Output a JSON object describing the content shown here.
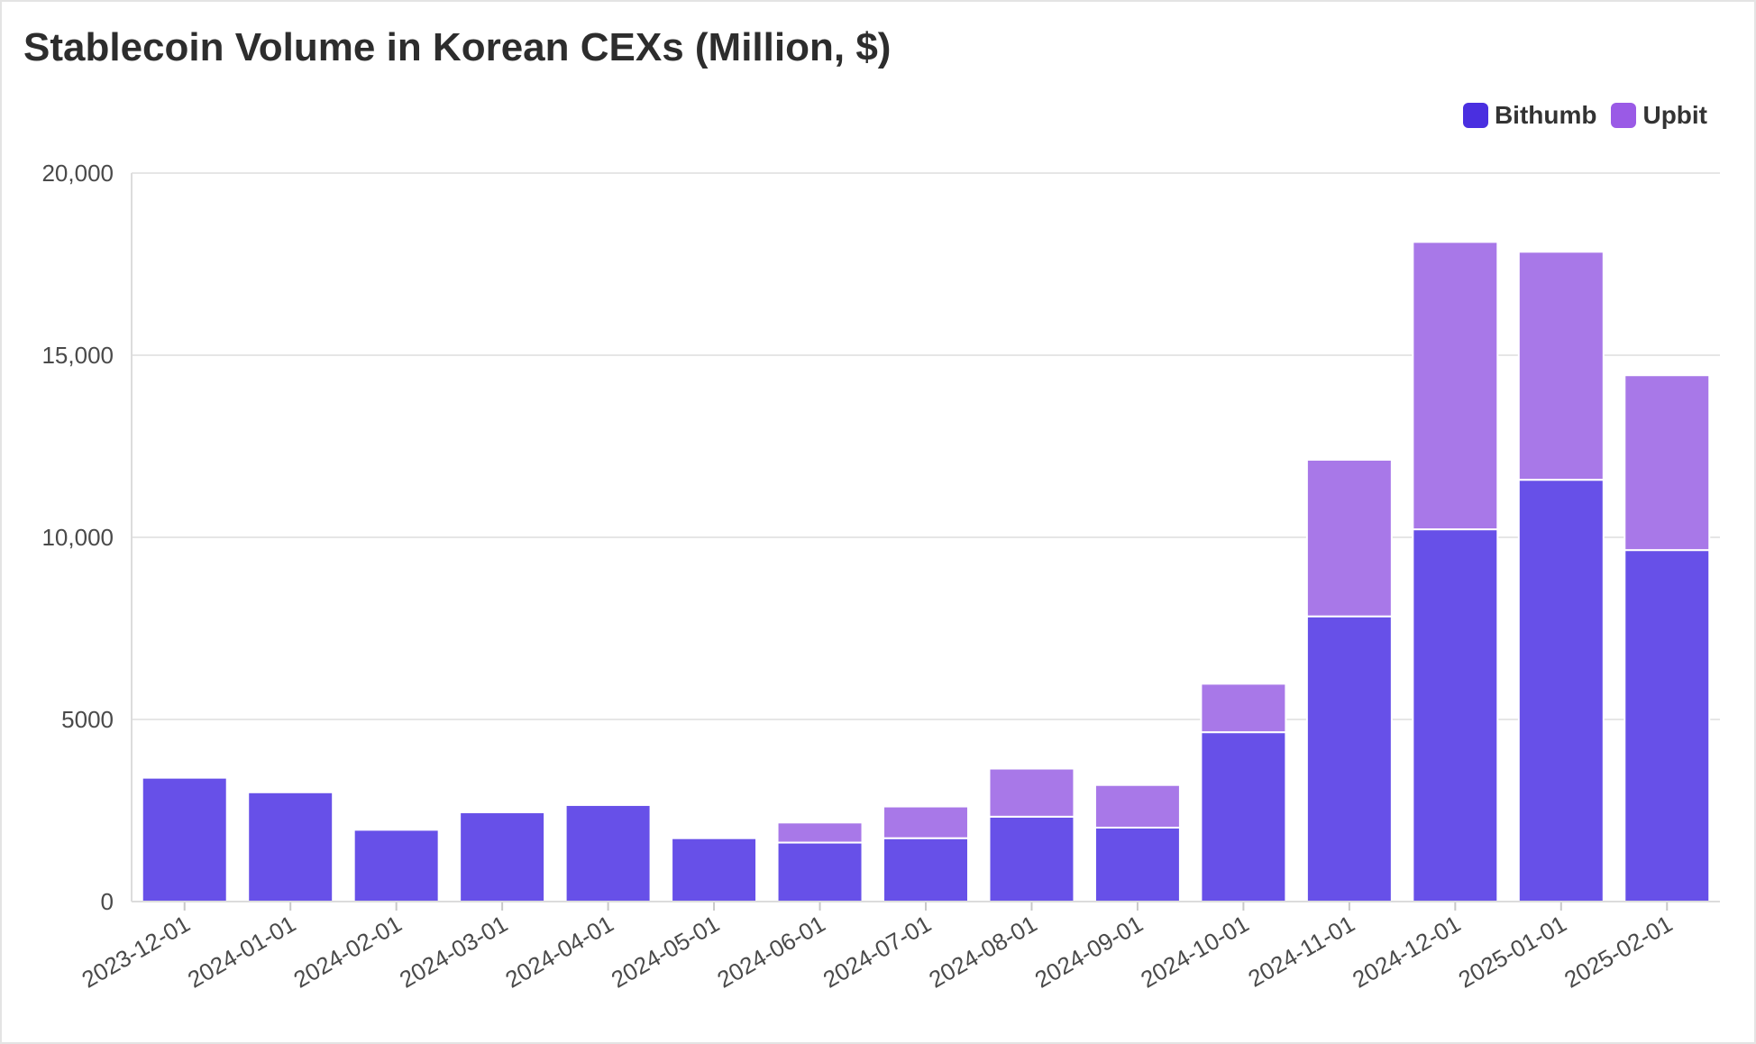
{
  "chart_data": {
    "type": "bar",
    "stacked": true,
    "title": "Stablecoin Volume in Korean CEXs (Million, $)",
    "categories": [
      "2023-12-01",
      "2024-01-01",
      "2024-02-01",
      "2024-03-01",
      "2024-04-01",
      "2024-05-01",
      "2024-06-01",
      "2024-07-01",
      "2024-08-01",
      "2024-09-01",
      "2024-10-01",
      "2024-11-01",
      "2024-12-01",
      "2025-01-01",
      "2025-02-01"
    ],
    "series": [
      {
        "name": "Bithumb",
        "color": "#5b3ce6",
        "values": [
          3400,
          3000,
          1970,
          2450,
          2650,
          1740,
          1620,
          1740,
          2330,
          2030,
          4650,
          7830,
          10220,
          11580,
          9650
        ]
      },
      {
        "name": "Upbit",
        "color": "#a06ce6",
        "values": [
          0,
          0,
          0,
          0,
          0,
          0,
          550,
          870,
          1320,
          1170,
          1330,
          4300,
          7890,
          6260,
          4800
        ]
      }
    ],
    "ylim": [
      0,
      20000
    ],
    "yticks": [
      0,
      5000,
      10000,
      15000,
      20000
    ],
    "ytick_labels": [
      "0",
      "5000",
      "10,000",
      "15,000",
      "20,000"
    ],
    "xlabel": "",
    "ylabel": "",
    "grid": true,
    "legend_position": "top-right"
  }
}
